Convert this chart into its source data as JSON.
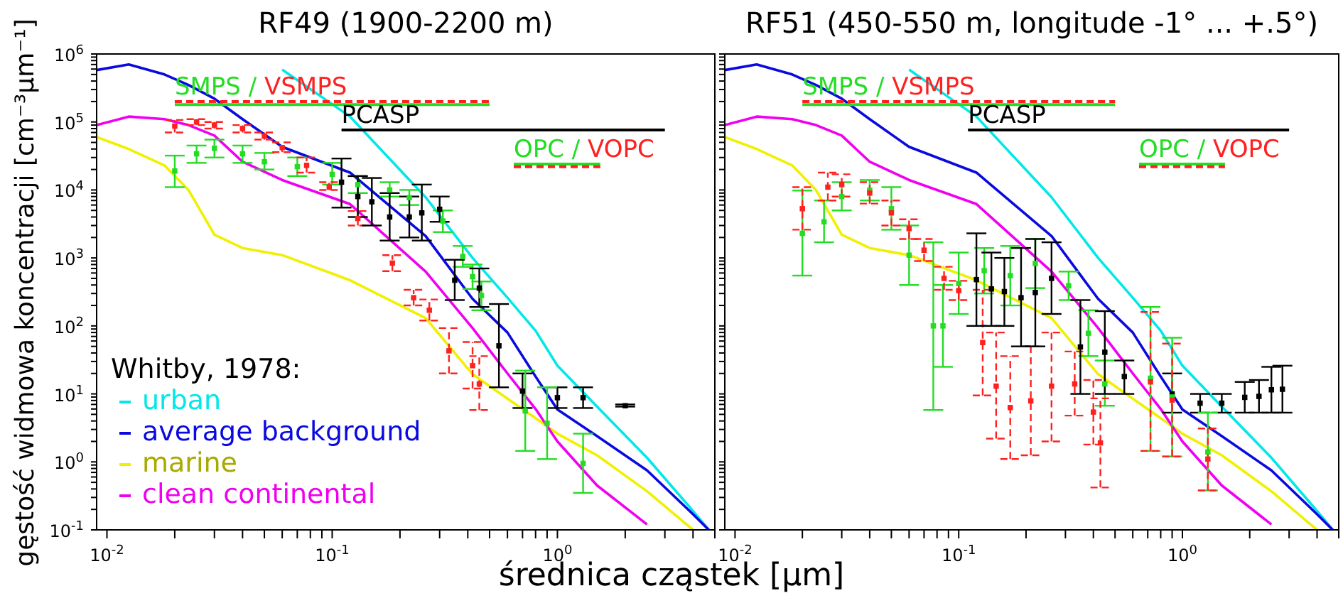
{
  "chart_data": [
    {
      "type": "line",
      "title": "RF49 (1900-2200 m)",
      "xlabel": "średnica cząstek [µm]",
      "ylabel": "gęstość widmowa koncentracji [cm⁻³µm⁻¹]",
      "legend": "bottom left",
      "legend_title": "Whitby, 1978:",
      "log": "xy",
      "marker": "none",
      "xlim": [
        0.009,
        5
      ],
      "ylim": [
        0.1,
        1000000
      ],
      "xticks": [
        {
          "value": 0.01,
          "label": "10$^{-2}$"
        },
        {
          "value": 0.02,
          "label": null
        },
        {
          "value": 0.03,
          "label": null
        },
        {
          "value": 0.04,
          "label": null
        },
        {
          "value": 0.05,
          "label": null
        },
        {
          "value": 0.06,
          "label": null
        },
        {
          "value": 0.07,
          "label": null
        },
        {
          "value": 0.08,
          "label": null
        },
        {
          "value": 0.09,
          "label": null
        },
        {
          "value": 0.1,
          "label": "10$^{-1}$"
        },
        {
          "value": 0.2,
          "label": null
        },
        {
          "value": 0.3,
          "label": null
        },
        {
          "value": 0.4,
          "label": null
        },
        {
          "value": 0.5,
          "label": null
        },
        {
          "value": 0.6,
          "label": null
        },
        {
          "value": 0.7,
          "label": null
        },
        {
          "value": 0.8,
          "label": null
        },
        {
          "value": 0.9,
          "label": null
        },
        {
          "value": 1,
          "label": "10$^{0}$"
        },
        {
          "value": 2,
          "label": null
        },
        {
          "value": 3,
          "label": null
        },
        {
          "value": 4,
          "label": null
        },
        {
          "value": 5,
          "label": null
        }
      ],
      "yticks": [
        {
          "value": 0.1,
          "label": "10$^{-1}$"
        },
        {
          "value": 0.2,
          "label": null
        },
        {
          "value": 0.3,
          "label": null
        },
        {
          "value": 0.4,
          "label": null
        },
        {
          "value": 0.5,
          "label": null
        },
        {
          "value": 0.6,
          "label": null
        },
        {
          "value": 0.7,
          "label": null
        },
        {
          "value": 0.8,
          "label": null
        },
        {
          "value": 0.9,
          "label": null
        },
        {
          "value": 1,
          "label": "10$^{0}$"
        },
        {
          "value": 2,
          "label": null
        },
        {
          "value": 3,
          "label": null
        },
        {
          "value": 4,
          "label": null
        },
        {
          "value": 5,
          "label": null
        },
        {
          "value": 6,
          "label": null
        },
        {
          "value": 7,
          "label": null
        },
        {
          "value": 8,
          "label": null
        },
        {
          "value": 9,
          "label": null
        },
        {
          "value": 10,
          "label": "10$^{1}$"
        },
        {
          "value": 20,
          "label": null
        },
        {
          "value": 30,
          "label": null
        },
        {
          "value": 40,
          "label": null
        },
        {
          "value": 50,
          "label": null
        },
        {
          "value": 60,
          "label": null
        },
        {
          "value": 70,
          "label": null
        },
        {
          "value": 80,
          "label": null
        },
        {
          "value": 90,
          "label": null
        },
        {
          "value": 100,
          "label": "10$^{2}$"
        },
        {
          "value": 200,
          "label": null
        },
        {
          "value": 300,
          "label": null
        },
        {
          "value": 400,
          "label": null
        },
        {
          "value": 500,
          "label": null
        },
        {
          "value": 600,
          "label": null
        },
        {
          "value": 700,
          "label": null
        },
        {
          "value": 800,
          "label": null
        },
        {
          "value": 900,
          "label": null
        },
        {
          "value": 1000,
          "label": "10$^{3}$"
        },
        {
          "value": 2000,
          "label": null
        },
        {
          "value": 3000,
          "label": null
        },
        {
          "value": 4000,
          "label": null
        },
        {
          "value": 5000,
          "label": null
        },
        {
          "value": 6000,
          "label": null
        },
        {
          "value": 7000,
          "label": null
        },
        {
          "value": 8000,
          "label": null
        },
        {
          "value": 9000,
          "label": null
        },
        {
          "value": 10000,
          "label": "10$^{4}$"
        },
        {
          "value": 20000,
          "label": null
        },
        {
          "value": 30000,
          "label": null
        },
        {
          "value": 40000,
          "label": null
        },
        {
          "value": 50000,
          "label": null
        },
        {
          "value": 60000,
          "label": null
        },
        {
          "value": 70000,
          "label": null
        },
        {
          "value": 80000,
          "label": null
        },
        {
          "value": 90000,
          "label": null
        },
        {
          "value": 100000,
          "label": "10$^{5}$"
        },
        {
          "value": 200000,
          "label": null
        },
        {
          "value": 300000,
          "label": null
        },
        {
          "value": 400000,
          "label": null
        },
        {
          "value": 500000,
          "label": null
        },
        {
          "value": 600000,
          "label": null
        },
        {
          "value": 700000,
          "label": null
        },
        {
          "value": 800000,
          "label": null
        },
        {
          "value": 900000,
          "label": null
        },
        {
          "value": 1000000,
          "label": "10$^{6}$"
        }
      ],
      "x": [
        0.009,
        0.0125,
        0.018,
        0.023,
        0.03,
        0.04,
        0.06,
        0.12,
        0.26,
        0.42,
        0.6,
        0.8,
        1,
        1.5,
        2.5,
        4,
        4.7
      ],
      "annotations": [
        "/",
        "/"
      ],
      "series": [
        {
          "name": "urban",
          "color": "#00e8e8",
          "values": [
            null,
            null,
            null,
            null,
            null,
            null,
            590000,
            120000,
            7800,
            1000,
            260,
            85,
            26,
            6.5,
            1.15,
            0.19,
            0.1
          ]
        },
        {
          "name": "average background",
          "color": "#0a0ae0",
          "values": [
            580000,
            700000,
            500000,
            350000,
            220000,
            110000,
            43000,
            18000,
            2100,
            250,
            80,
            18,
            5.9,
            2.4,
            0.75,
            0.17,
            0.1
          ]
        },
        {
          "name": "marine",
          "color": "#f0f000",
          "values": [
            60000,
            40000,
            23000,
            10000,
            2200,
            1400,
            1100,
            470,
            130,
            19.5,
            8.5,
            4.4,
            2.6,
            1.25,
            0.37,
            0.1,
            null
          ]
        },
        {
          "name": "clean continental",
          "color": "#f000f0",
          "values": [
            90000,
            120000,
            110000,
            90000,
            63000,
            26000,
            14000,
            6200,
            630,
            93,
            20,
            6,
            2,
            0.45,
            0.12,
            null,
            null
          ]
        },
        {
          "type": "scatter",
          "marker": "square",
          "color": "#22dd22",
          "x": [
            0.02,
            0.025,
            0.03,
            0.04,
            0.05,
            0.07,
            0.1,
            0.13,
            0.18,
            0.22,
            0.31,
            0.38,
            0.42,
            0.46
          ],
          "values": [
            19000,
            34000,
            41000,
            34000,
            26000,
            22000,
            17000,
            12000,
            10000,
            7700,
            3500,
            1050,
            530,
            280
          ],
          "errors": [
            [
              11000,
              32000
            ],
            [
              25000,
              45000
            ],
            [
              30000,
              55000
            ],
            [
              25000,
              45000
            ],
            [
              20000,
              35000
            ],
            [
              16000,
              30000
            ],
            [
              12000,
              25000
            ],
            [
              9000,
              16000
            ],
            [
              8000,
              13000
            ],
            [
              6000,
              10000
            ],
            [
              2400,
              5000
            ],
            [
              740,
              1500
            ],
            [
              350,
              800
            ],
            [
              170,
              450
            ]
          ]
        },
        {
          "type": "scatter",
          "marker": "square",
          "color": "#ff2020",
          "line_style": "dashed",
          "x": [
            0.02,
            0.025,
            0.03,
            0.04,
            0.05,
            0.06,
            0.077,
            0.097,
            0.13,
            0.185,
            0.23,
            0.27,
            0.33,
            0.42,
            0.45
          ],
          "values": [
            87000,
            100000,
            90000,
            80000,
            62000,
            42000,
            23000,
            11000,
            3800,
            840,
            260,
            170,
            43,
            26,
            14
          ],
          "errors": [
            [
              70000,
              107000
            ],
            [
              90000,
              110000
            ],
            [
              80000,
              100000
            ],
            [
              70000,
              90000
            ],
            [
              55000,
              70000
            ],
            [
              36000,
              50000
            ],
            [
              18000,
              30000
            ],
            [
              10000,
              13000
            ],
            [
              3000,
              4900
            ],
            [
              640,
              1100
            ],
            [
              200,
              340
            ],
            [
              120,
              245
            ],
            [
              20,
              93
            ],
            [
              12,
              58
            ],
            [
              5.8,
              36
            ]
          ]
        },
        {
          "type": "scatter",
          "marker": "square",
          "color": "#000000",
          "x": [
            0.11,
            0.13,
            0.15,
            0.18,
            0.22,
            0.25,
            0.3,
            0.35,
            0.45,
            0.55,
            0.7,
            1,
            1.3,
            2
          ],
          "values": [
            13000,
            8000,
            6700,
            4000,
            4000,
            4600,
            5200,
            470,
            360,
            51,
            11,
            8.8,
            8.8,
            6.7
          ],
          "errors": [
            [
              5500,
              29000
            ],
            [
              4000,
              16000
            ],
            [
              3000,
              15000
            ],
            [
              1800,
              9000
            ],
            [
              2000,
              8000
            ],
            [
              1800,
              12000
            ],
            [
              3400,
              8000
            ],
            [
              240,
              940
            ],
            [
              190,
              700
            ],
            [
              12.5,
              210
            ],
            [
              6.2,
              20
            ],
            [
              6.2,
              12.5
            ],
            [
              6.2,
              12.5
            ],
            [
              6.5,
              7
            ]
          ]
        },
        {
          "type": "scatter",
          "marker": "square",
          "color": "#22dd22",
          "x": [
            0.72,
            0.9,
            1.3
          ],
          "values": [
            5.6,
            3.7,
            0.95
          ],
          "errors": [
            [
              1.45,
              22
            ],
            [
              1.1,
              12.5
            ],
            [
              0.35,
              2.6
            ]
          ]
        },
        {
          "name": "SMPS",
          "color": "#22dd22",
          "x": [
            0.02,
            0.5
          ],
          "values": [
            180000,
            180000
          ]
        },
        {
          "name": "VSMPS",
          "color": "#ff2020",
          "line_style": "dashed",
          "x": [
            0.02,
            0.5
          ],
          "values": [
            200000,
            200000
          ]
        },
        {
          "name": "PCASP",
          "color": "#000000",
          "x": [
            0.11,
            3
          ],
          "values": [
            76000,
            76000
          ]
        },
        {
          "name": "OPC",
          "color": "#22dd22",
          "x": [
            0.64,
            1.55
          ],
          "values": [
            24000,
            24000
          ]
        },
        {
          "name": "VOPC",
          "color": "#ff2020",
          "line_style": "dashed",
          "x": [
            0.64,
            1.55
          ],
          "values": [
            22000,
            22000
          ]
        }
      ]
    },
    {
      "type": "line",
      "title": "RF51 (450-550 m, longitude -1° ... +.5°)",
      "log": "xy",
      "marker": "none",
      "tick_labels": "x",
      "xlim": [
        0.009,
        5
      ],
      "ylim": [
        0.1,
        1000000
      ],
      "xticks": [
        {
          "value": 0.01,
          "label": "10$^{-2}$"
        },
        {
          "value": 0.02,
          "label": null
        },
        {
          "value": 0.03,
          "label": null
        },
        {
          "value": 0.04,
          "label": null
        },
        {
          "value": 0.05,
          "label": null
        },
        {
          "value": 0.06,
          "label": null
        },
        {
          "value": 0.07,
          "label": null
        },
        {
          "value": 0.08,
          "label": null
        },
        {
          "value": 0.09,
          "label": null
        },
        {
          "value": 0.1,
          "label": "10$^{-1}$"
        },
        {
          "value": 0.2,
          "label": null
        },
        {
          "value": 0.3,
          "label": null
        },
        {
          "value": 0.4,
          "label": null
        },
        {
          "value": 0.5,
          "label": null
        },
        {
          "value": 0.6,
          "label": null
        },
        {
          "value": 0.7,
          "label": null
        },
        {
          "value": 0.8,
          "label": null
        },
        {
          "value": 0.9,
          "label": null
        },
        {
          "value": 1,
          "label": "10$^{0}$"
        },
        {
          "value": 2,
          "label": null
        },
        {
          "value": 3,
          "label": null
        },
        {
          "value": 4,
          "label": null
        },
        {
          "value": 5,
          "label": null
        }
      ],
      "yticks": [
        {
          "value": 0.1,
          "label": null
        },
        {
          "value": 0.2,
          "label": null
        },
        {
          "value": 0.3,
          "label": null
        },
        {
          "value": 0.4,
          "label": null
        },
        {
          "value": 0.5,
          "label": null
        },
        {
          "value": 0.6,
          "label": null
        },
        {
          "value": 0.7,
          "label": null
        },
        {
          "value": 0.8,
          "label": null
        },
        {
          "value": 0.9,
          "label": null
        },
        {
          "value": 1,
          "label": null
        },
        {
          "value": 2,
          "label": null
        },
        {
          "value": 3,
          "label": null
        },
        {
          "value": 4,
          "label": null
        },
        {
          "value": 5,
          "label": null
        },
        {
          "value": 6,
          "label": null
        },
        {
          "value": 7,
          "label": null
        },
        {
          "value": 8,
          "label": null
        },
        {
          "value": 9,
          "label": null
        },
        {
          "value": 10,
          "label": null
        },
        {
          "value": 20,
          "label": null
        },
        {
          "value": 30,
          "label": null
        },
        {
          "value": 40,
          "label": null
        },
        {
          "value": 50,
          "label": null
        },
        {
          "value": 60,
          "label": null
        },
        {
          "value": 70,
          "label": null
        },
        {
          "value": 80,
          "label": null
        },
        {
          "value": 90,
          "label": null
        },
        {
          "value": 100,
          "label": null
        },
        {
          "value": 200,
          "label": null
        },
        {
          "value": 300,
          "label": null
        },
        {
          "value": 400,
          "label": null
        },
        {
          "value": 500,
          "label": null
        },
        {
          "value": 600,
          "label": null
        },
        {
          "value": 700,
          "label": null
        },
        {
          "value": 800,
          "label": null
        },
        {
          "value": 900,
          "label": null
        },
        {
          "value": 1000,
          "label": null
        },
        {
          "value": 2000,
          "label": null
        },
        {
          "value": 3000,
          "label": null
        },
        {
          "value": 4000,
          "label": null
        },
        {
          "value": 5000,
          "label": null
        },
        {
          "value": 6000,
          "label": null
        },
        {
          "value": 7000,
          "label": null
        },
        {
          "value": 8000,
          "label": null
        },
        {
          "value": 9000,
          "label": null
        },
        {
          "value": 10000,
          "label": null
        },
        {
          "value": 20000,
          "label": null
        },
        {
          "value": 30000,
          "label": null
        },
        {
          "value": 40000,
          "label": null
        },
        {
          "value": 50000,
          "label": null
        },
        {
          "value": 60000,
          "label": null
        },
        {
          "value": 70000,
          "label": null
        },
        {
          "value": 80000,
          "label": null
        },
        {
          "value": 90000,
          "label": null
        },
        {
          "value": 100000,
          "label": null
        },
        {
          "value": 200000,
          "label": null
        },
        {
          "value": 300000,
          "label": null
        },
        {
          "value": 400000,
          "label": null
        },
        {
          "value": 500000,
          "label": null
        },
        {
          "value": 600000,
          "label": null
        },
        {
          "value": 700000,
          "label": null
        },
        {
          "value": 800000,
          "label": null
        },
        {
          "value": 900000,
          "label": null
        },
        {
          "value": 1000000,
          "label": null
        }
      ],
      "x": [
        0.009,
        0.0125,
        0.018,
        0.023,
        0.03,
        0.04,
        0.06,
        0.12,
        0.26,
        0.42,
        0.6,
        0.8,
        1,
        1.5,
        2.5,
        4,
        4.7
      ],
      "annotations": [
        "/",
        "/"
      ],
      "series": [
        {
          "color": "#00e8e8",
          "values": [
            null,
            null,
            null,
            null,
            null,
            null,
            590000,
            120000,
            7800,
            1000,
            260,
            85,
            26,
            6.5,
            1.15,
            0.19,
            0.1
          ]
        },
        {
          "color": "#0a0ae0",
          "values": [
            580000,
            700000,
            500000,
            350000,
            220000,
            110000,
            43000,
            18000,
            2100,
            250,
            80,
            18,
            5.9,
            2.4,
            0.75,
            0.17,
            0.1
          ]
        },
        {
          "color": "#f0f000",
          "values": [
            60000,
            40000,
            23000,
            10000,
            2200,
            1400,
            1100,
            470,
            130,
            19.5,
            8.5,
            4.4,
            2.6,
            1.25,
            0.37,
            0.1,
            null
          ]
        },
        {
          "color": "#f000f0",
          "values": [
            90000,
            120000,
            110000,
            90000,
            63000,
            26000,
            14000,
            6200,
            630,
            93,
            20,
            6,
            2,
            0.45,
            0.12,
            null,
            null
          ]
        },
        {
          "type": "scatter",
          "marker": "square",
          "color": "#22dd22",
          "x": [
            0.02,
            0.025,
            0.03,
            0.04,
            0.05,
            0.06,
            0.077,
            0.085,
            0.1,
            0.13,
            0.17,
            0.22,
            0.31,
            0.38,
            0.45
          ],
          "values": [
            2300,
            3400,
            8000,
            9900,
            5300,
            1100,
            100,
            100,
            420,
            650,
            550,
            830,
            390,
            78,
            14
          ],
          "errors": [
            [
              550,
              9800
            ],
            [
              1700,
              7000
            ],
            [
              5000,
              13000
            ],
            [
              7000,
              14000
            ],
            [
              2600,
              11000
            ],
            [
              400,
              3000
            ],
            [
              5.8,
              1700
            ],
            [
              25,
              400
            ],
            [
              150,
              1200
            ],
            [
              300,
              1400
            ],
            [
              200,
              1500
            ],
            [
              360,
              1900
            ],
            [
              240,
              630
            ],
            [
              36,
              170
            ],
            [
              6.7,
              31
            ]
          ]
        },
        {
          "type": "scatter",
          "marker": "square",
          "color": "#ff2020",
          "line_style": "dashed",
          "x": [
            0.02,
            0.026,
            0.03,
            0.04,
            0.05,
            0.06,
            0.07,
            0.086,
            0.1,
            0.128,
            0.147,
            0.17,
            0.21,
            0.26,
            0.33,
            0.4,
            0.43
          ],
          "values": [
            5300,
            11000,
            12000,
            9000,
            4600,
            2700,
            1300,
            500,
            330,
            57,
            13,
            6.3,
            7.9,
            13,
            14,
            5.4,
            1.9
          ],
          "errors": [
            [
              2600,
              11000
            ],
            [
              7000,
              18000
            ],
            [
              8000,
              17000
            ],
            [
              6300,
              13000
            ],
            [
              3000,
              7000
            ],
            [
              1900,
              3700
            ],
            [
              900,
              1900
            ],
            [
              340,
              740
            ],
            [
              240,
              460
            ],
            [
              9.5,
              340
            ],
            [
              2.2,
              80
            ],
            [
              1.1,
              36
            ],
            [
              1.25,
              50
            ],
            [
              2,
              80
            ],
            [
              4.8,
              42
            ],
            [
              1.8,
              16
            ],
            [
              0.42,
              8.6
            ]
          ]
        },
        {
          "type": "scatter",
          "marker": "square",
          "color": "#000000",
          "x": [
            0.12,
            0.14,
            0.16,
            0.19,
            0.22,
            0.26,
            0.35,
            0.45,
            0.55,
            0.9,
            1.2,
            1.5,
            1.9,
            2.2,
            2.5,
            2.8
          ],
          "values": [
            480,
            350,
            320,
            260,
            310,
            500,
            49,
            41,
            18,
            10,
            7.3,
            7.3,
            8.9,
            9.2,
            11.5,
            11.7
          ],
          "errors": [
            [
              100,
              2300
            ],
            [
              100,
              1200
            ],
            [
              100,
              1000
            ],
            [
              50,
              1400
            ],
            [
              50,
              1900
            ],
            [
              150,
              1700
            ],
            [
              10,
              240
            ],
            [
              10,
              165
            ],
            [
              10,
              31
            ],
            [
              5.3,
              20
            ],
            [
              5.3,
              10
            ],
            [
              5.3,
              10
            ],
            [
              5.3,
              15
            ],
            [
              5.3,
              16
            ],
            [
              5.3,
              25
            ],
            [
              5.3,
              26
            ]
          ]
        },
        {
          "type": "scatter",
          "marker": "square",
          "color": "#22dd22",
          "x": [
            0.72,
            0.9,
            1.3
          ],
          "values": [
            17,
            9,
            1.4
          ],
          "errors": [
            [
              1.45,
              190
            ],
            [
              1.2,
              67
            ],
            [
              0.38,
              5.3
            ]
          ]
        },
        {
          "type": "scatter",
          "marker": "square",
          "color": "#ff2020",
          "line_style": "dashed",
          "x": [
            0.72,
            0.9,
            1.3
          ],
          "values": [
            15,
            8.1,
            1.1
          ],
          "errors": [
            [
              1.45,
              160
            ],
            [
              1.2,
              55
            ],
            [
              0.38,
              3.1
            ]
          ]
        },
        {
          "name": "SMPS",
          "color": "#22dd22",
          "x": [
            0.02,
            0.5
          ],
          "values": [
            180000,
            180000
          ]
        },
        {
          "name": "VSMPS",
          "color": "#ff2020",
          "line_style": "dashed",
          "x": [
            0.02,
            0.5
          ],
          "values": [
            200000,
            200000
          ]
        },
        {
          "name": "PCASP",
          "color": "#000000",
          "x": [
            0.11,
            3
          ],
          "values": [
            76000,
            76000
          ]
        },
        {
          "name": "OPC",
          "color": "#22dd22",
          "x": [
            0.64,
            1.55
          ],
          "values": [
            24000,
            24000
          ]
        },
        {
          "name": "VOPC",
          "color": "#ff2020",
          "line_style": "dashed",
          "x": [
            0.64,
            1.55
          ],
          "values": [
            22000,
            22000
          ]
        }
      ]
    }
  ]
}
